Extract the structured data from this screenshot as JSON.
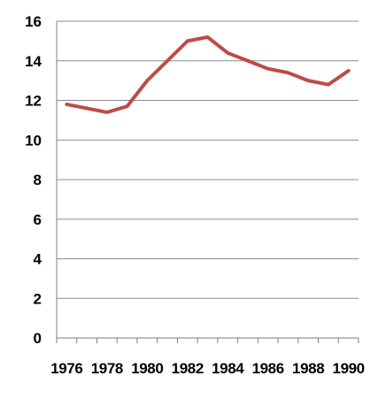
{
  "chart_data": {
    "type": "line",
    "title": "",
    "xlabel": "",
    "ylabel": "",
    "x": [
      1976,
      1977,
      1978,
      1979,
      1980,
      1981,
      1982,
      1983,
      1984,
      1985,
      1986,
      1987,
      1988,
      1989,
      1990
    ],
    "x_tick_labels": [
      "1976",
      "1978",
      "1980",
      "1982",
      "1984",
      "1986",
      "1988",
      "1990"
    ],
    "y_tick_labels": [
      "0",
      "2",
      "4",
      "6",
      "8",
      "10",
      "12",
      "14",
      "16"
    ],
    "ylim": [
      0,
      16
    ],
    "grid": "horizontal",
    "legend": "none",
    "series": [
      {
        "color": "#be4b48",
        "values": [
          11.8,
          11.6,
          11.4,
          11.7,
          13.0,
          14.0,
          15.0,
          15.2,
          14.4,
          14.0,
          13.6,
          13.4,
          13.0,
          12.8,
          13.5
        ]
      }
    ]
  }
}
